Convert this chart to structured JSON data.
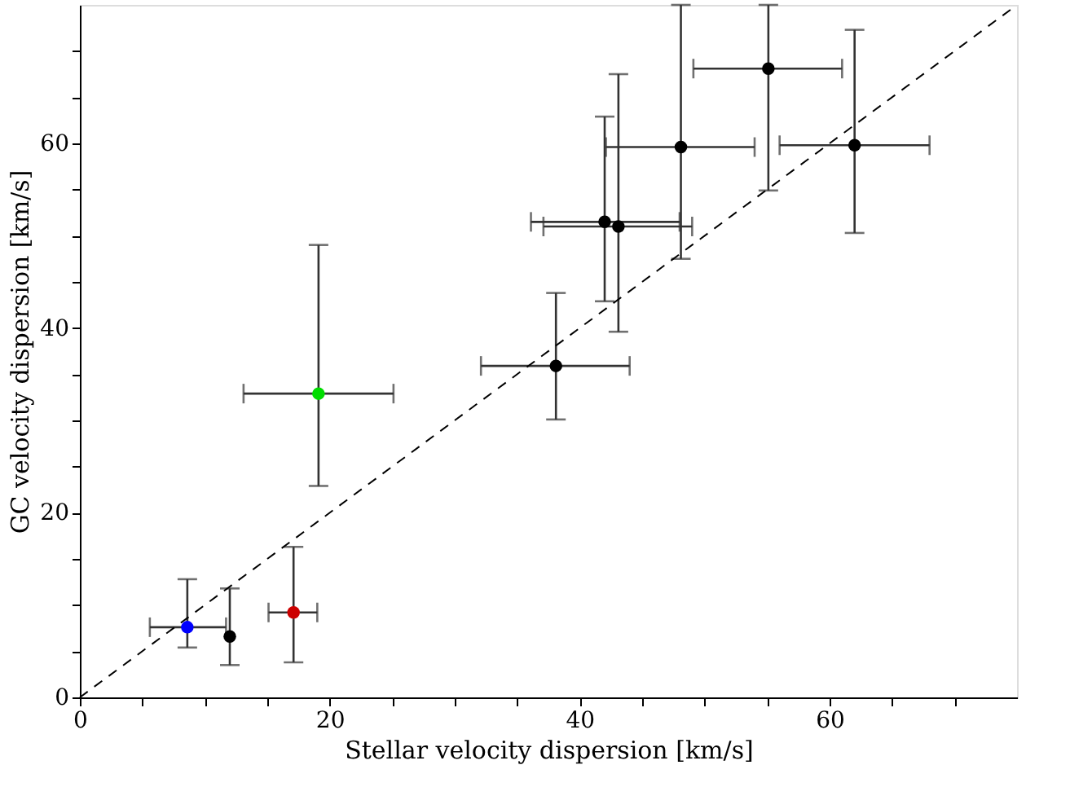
{
  "chart_data": {
    "type": "scatter",
    "xlabel": "Stellar velocity dispersion [km/s]",
    "ylabel": "GC velocity dispersion [km/s]",
    "xlim": [
      0,
      75
    ],
    "ylim": [
      0,
      75
    ],
    "xticks": [
      0,
      {
        "value": 5,
        "label": null
      },
      {
        "value": 10,
        "label": null
      },
      {
        "value": 15,
        "label": null
      },
      20,
      {
        "value": 25,
        "label": null
      },
      {
        "value": 30,
        "label": null
      },
      {
        "value": 35,
        "label": null
      },
      40,
      {
        "value": 45,
        "label": null
      },
      {
        "value": 50,
        "label": null
      },
      {
        "value": 55,
        "label": null
      },
      60,
      {
        "value": 65,
        "label": null
      },
      {
        "value": 70,
        "label": null
      }
    ],
    "yticks": [
      0,
      {
        "value": 5,
        "label": null
      },
      {
        "value": 10,
        "label": null
      },
      {
        "value": 15,
        "label": null
      },
      20,
      {
        "value": 25,
        "label": null
      },
      {
        "value": 30,
        "label": null
      },
      {
        "value": 35,
        "label": null
      },
      40,
      {
        "value": 45,
        "label": null
      },
      {
        "value": 50,
        "label": null
      },
      {
        "value": 55,
        "label": null
      },
      60,
      {
        "value": 65,
        "label": null
      },
      {
        "value": 70,
        "label": null
      }
    ],
    "grid": false,
    "marker": "circle",
    "series": [
      {
        "x": [
          8.6,
          12.0,
          17.1,
          19.1,
          38.1,
          42.0,
          43.1,
          48.1,
          55.1,
          62.0
        ],
        "values": [
          7.6,
          6.6,
          9.2,
          32.9,
          35.9,
          51.5,
          51.0,
          59.6,
          68.1,
          59.8
        ],
        "colors": [
          "#0000ff",
          "#000000",
          "#cc0000",
          "#00dd00",
          "#000000",
          "#000000",
          "#000000",
          "#000000",
          "#000000",
          "#000000"
        ],
        "xerrors": [
          [
            5.6,
            11.7
          ],
          null,
          [
            15.1,
            19.0
          ],
          [
            13.1,
            25.1
          ],
          [
            32.1,
            44.0
          ],
          [
            36.1,
            48.0
          ],
          [
            37.1,
            49.0
          ],
          [
            42.1,
            54.0
          ],
          [
            49.1,
            61.0
          ],
          [
            56.0,
            68.0
          ]
        ],
        "errors": [
          [
            5.4,
            12.8
          ],
          [
            3.5,
            11.8
          ],
          [
            3.8,
            16.3
          ],
          [
            22.9,
            49.0
          ],
          [
            30.1,
            43.8
          ],
          [
            42.9,
            62.9
          ],
          [
            39.6,
            67.5
          ],
          [
            47.5,
            75
          ],
          [
            54.9,
            75
          ],
          [
            50.3,
            72.3
          ]
        ]
      },
      {
        "type": "line",
        "x": [
          0,
          75
        ],
        "values": [
          0,
          75
        ],
        "color": "#000000",
        "line_style": "dashed",
        "marker": "none"
      }
    ]
  }
}
